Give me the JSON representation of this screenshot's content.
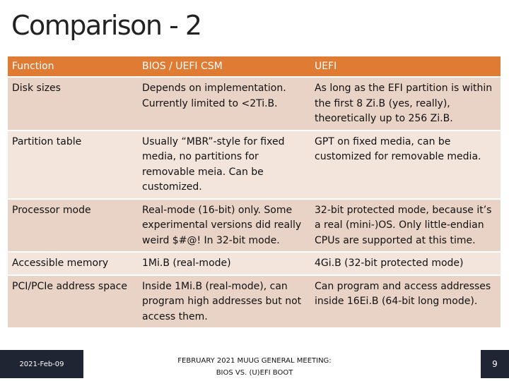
{
  "slide": {
    "title": "Comparison - 2"
  },
  "table": {
    "headers": [
      "Function",
      "BIOS / UEFI CSM",
      "UEFI"
    ],
    "rows": [
      [
        "Disk sizes",
        "Depends on implementation. Currently limited to <2Ti.B.",
        "As long as the EFI partition is within the first 8 Zi.B (yes, really), theoretically up to 256 Zi.B."
      ],
      [
        "Partition table",
        "Usually “MBR”-style for fixed media, no partitions for removable meia.  Can be customized.",
        "GPT on fixed media, can be customized for removable media."
      ],
      [
        "Processor mode",
        "Real-mode (16-bit) only.  Some experimental versions did really weird $#@! In 32-bit mode.",
        "32-bit protected mode, because it’s a real (mini-)OS. Only little-endian CPUs are supported at this time."
      ],
      [
        "Accessible memory",
        "1Mi.B (real-mode)",
        "4Gi.B (32-bit protected mode)"
      ],
      [
        "PCI/PCIe address space",
        "Inside 1Mi.B (real-mode), can program high addresses but not access them.",
        "Can program and access addresses inside 16Ei.B (64-bit long mode)."
      ]
    ]
  },
  "footer": {
    "date": "2021-Feb-09",
    "center_line1": "FEBRUARY 2021 MUUG GENERAL MEETING:",
    "center_line2": "BIOS VS. (U)EFI BOOT",
    "page_number": "9"
  }
}
